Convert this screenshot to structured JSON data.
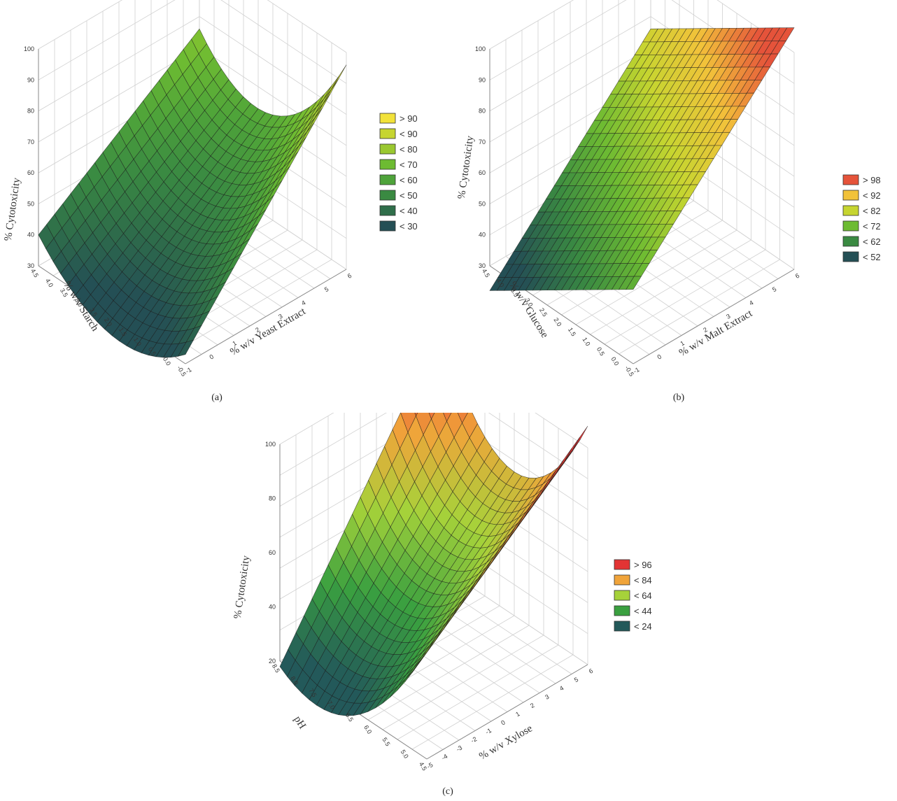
{
  "chart_data": [
    {
      "panel": "a",
      "type": "surface3d",
      "caption": "(a)",
      "zlabel": "% Cytotoxicity",
      "xlabel": "% w/v Starch",
      "ylabel": "% w/v Yeast Extract",
      "z_ticks": [
        "30",
        "40",
        "50",
        "60",
        "70",
        "80",
        "90",
        "100"
      ],
      "x_ticks": [
        "4.5",
        "4.0",
        "3.5",
        "3.0",
        "2.5",
        "2.0",
        "1.5",
        "1.0",
        "0.5",
        "0.0",
        "-0.5"
      ],
      "y_ticks": [
        "-1",
        "0",
        "1",
        "2",
        "3",
        "4",
        "5",
        "6"
      ],
      "zlim": [
        30,
        100
      ],
      "legend": [
        "> 90",
        "< 90",
        "< 80",
        "< 70",
        "< 60",
        "< 50",
        "< 40",
        "< 30"
      ],
      "legend_colors": [
        "#f2e23a",
        "#c6d530",
        "#9ac830",
        "#6dbb32",
        "#4ea33a",
        "#3a8a42",
        "#2f6e4a",
        "#244f55"
      ],
      "surface": {
        "corner_x0_y0": 33,
        "corner_x1_y0": 40,
        "corner_x0_y1": 96,
        "corner_x1_y1": 76,
        "curvature": -22
      }
    },
    {
      "panel": "b",
      "type": "surface3d",
      "caption": "(b)",
      "zlabel": "% Cytotoxicity",
      "xlabel": "% w/v Glucose",
      "ylabel": "% w/v Malt Extract",
      "z_ticks": [
        "30",
        "40",
        "50",
        "60",
        "70",
        "80",
        "90",
        "100"
      ],
      "x_ticks": [
        "4.5",
        "4.0",
        "3.5",
        "3.0",
        "2.5",
        "2.0",
        "1.5",
        "1.0",
        "0.5",
        "0.0",
        "-0.5"
      ],
      "y_ticks": [
        "-1",
        "0",
        "1",
        "2",
        "3",
        "4",
        "5",
        "6"
      ],
      "zlim": [
        30,
        100
      ],
      "legend": [
        "> 98",
        "< 92",
        "< 82",
        "< 72",
        "< 62",
        "< 52"
      ],
      "legend_colors": [
        "#e5533a",
        "#f2c23a",
        "#c6d530",
        "#6dbb32",
        "#3a8a42",
        "#244f55"
      ],
      "surface": {
        "corner_x0_y0": 54,
        "corner_x1_y0": 22,
        "corner_x0_y1": 108,
        "corner_x1_y1": 76,
        "curvature": 0
      }
    },
    {
      "panel": "c",
      "type": "surface3d",
      "caption": "(c)",
      "zlabel": "% Cytotoxicity",
      "xlabel": "pH",
      "ylabel": "% w/v Xylose",
      "z_ticks": [
        "20",
        "40",
        "60",
        "80",
        "100"
      ],
      "x_ticks": [
        "8.5",
        "8.0",
        "7.5",
        "7.0",
        "6.5",
        "6.0",
        "5.5",
        "5.0",
        "4.5"
      ],
      "y_ticks": [
        "-5",
        "-4",
        "-3",
        "-2",
        "-1",
        "0",
        "1",
        "2",
        "3",
        "4",
        "5",
        "6"
      ],
      "zlim": [
        20,
        100
      ],
      "legend": [
        "> 96",
        "< 84",
        "< 64",
        "< 44",
        "< 24"
      ],
      "legend_colors": [
        "#e33434",
        "#f0a43a",
        "#a6d23a",
        "#3aa040",
        "#23595a"
      ],
      "surface": {
        "corner_x0_y0": 60,
        "corner_x1_y0": 18,
        "corner_x0_y1": 108,
        "corner_x1_y1": 108,
        "curvature": -35
      }
    }
  ]
}
